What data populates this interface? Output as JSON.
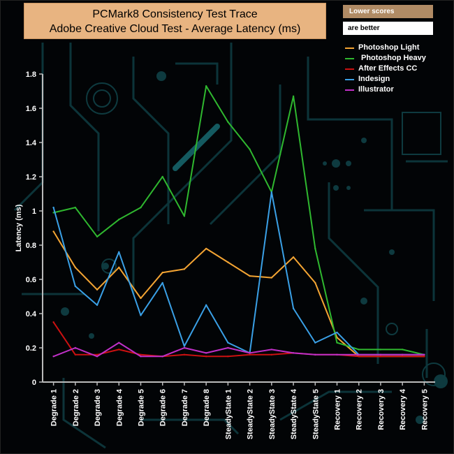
{
  "chart_data": {
    "type": "line",
    "title": "PCMark8 Consistency Test Trace",
    "subtitle": "Adobe Creative Cloud Test -  Average Latency (ms)",
    "note_line1": "Lower scores",
    "note_line2": "are better",
    "xlabel": "",
    "ylabel": "Latency (ms)",
    "ylim": [
      0,
      1.8
    ],
    "yticks": [
      "0",
      "0.2",
      "0.4",
      "0.6",
      "0.8",
      "1",
      "1.2",
      "1.4",
      "1.6",
      "1.8"
    ],
    "categories": [
      "Degrade 1",
      "Degrade 2",
      "Degrade 3",
      "Degrade 4",
      "Degrade 5",
      "Degrade 6",
      "Degrade 7",
      "Degrade 8",
      "SteadyState 1",
      "SteadyState 2",
      "SteadyState 3",
      "SteadyState 4",
      "SteadyState 5",
      "Recovery 1",
      "Recovery 2",
      "Recovery 3",
      "Recovery 4",
      "Recovery 5"
    ],
    "legend_position": "top-right",
    "grid": false,
    "series": [
      {
        "name": "Photoshop Light",
        "color": "#f4a533",
        "values": [
          0.88,
          0.67,
          0.54,
          0.67,
          0.49,
          0.64,
          0.66,
          0.78,
          0.7,
          0.62,
          0.61,
          0.73,
          0.58,
          0.26,
          0.15,
          0.15,
          0.15,
          0.15
        ]
      },
      {
        "name": "Photoshop Heavy",
        "color": "#2fb82f",
        "values": [
          0.99,
          1.02,
          0.85,
          0.95,
          1.02,
          1.2,
          0.97,
          1.73,
          1.52,
          1.36,
          1.11,
          1.67,
          0.78,
          0.23,
          0.19,
          0.19,
          0.19,
          0.16
        ]
      },
      {
        "name": "After Effects CC",
        "color": "#cc1111",
        "values": [
          0.35,
          0.16,
          0.16,
          0.19,
          0.16,
          0.15,
          0.16,
          0.15,
          0.15,
          0.16,
          0.16,
          0.17,
          0.16,
          0.16,
          0.15,
          0.15,
          0.15,
          0.15
        ]
      },
      {
        "name": "Indesign",
        "color": "#3aa0e6",
        "values": [
          1.02,
          0.56,
          0.45,
          0.76,
          0.39,
          0.58,
          0.21,
          0.45,
          0.23,
          0.17,
          1.11,
          0.43,
          0.23,
          0.29,
          0.16,
          0.16,
          0.16,
          0.16
        ]
      },
      {
        "name": "Illustrator",
        "color": "#c030c8",
        "values": [
          0.15,
          0.2,
          0.15,
          0.23,
          0.15,
          0.15,
          0.2,
          0.17,
          0.2,
          0.17,
          0.19,
          0.17,
          0.16,
          0.16,
          0.16,
          0.16,
          0.16,
          0.16
        ]
      }
    ]
  }
}
